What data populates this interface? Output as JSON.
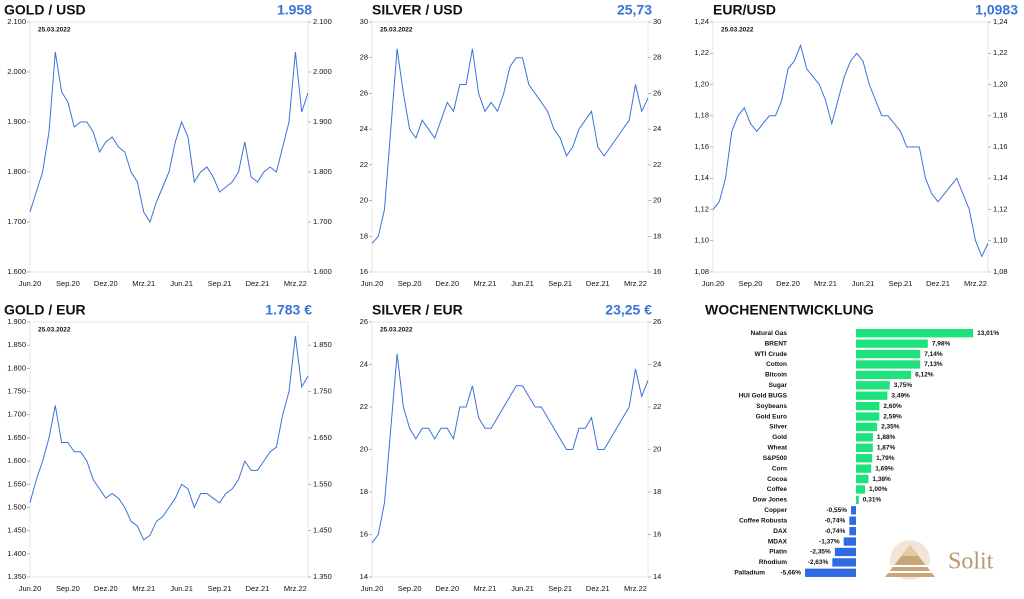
{
  "chart_data": [
    {
      "type": "line",
      "title": "GOLD / USD",
      "headline": "1.958",
      "annotation": "25.03.2022",
      "color": "#3a73d9",
      "categories": [
        "Jun.20",
        null,
        null,
        null,
        null,
        null,
        "Sep.20",
        null,
        null,
        null,
        null,
        null,
        "Dez.20",
        null,
        null,
        null,
        null,
        null,
        "Mrz.21",
        null,
        null,
        null,
        null,
        null,
        "Jun.21",
        null,
        null,
        null,
        null,
        null,
        "Sep.21",
        null,
        null,
        null,
        null,
        null,
        "Dez.21",
        null,
        null,
        null,
        null,
        null,
        "Mrz.22",
        null,
        null
      ],
      "values": [
        1720,
        1760,
        1800,
        1880,
        2040,
        1960,
        1940,
        1890,
        1900,
        1900,
        1880,
        1840,
        1860,
        1870,
        1850,
        1840,
        1800,
        1780,
        1720,
        1700,
        1740,
        1770,
        1800,
        1860,
        1900,
        1870,
        1780,
        1800,
        1810,
        1790,
        1760,
        1770,
        1780,
        1800,
        1860,
        1790,
        1780,
        1800,
        1810,
        1800,
        1850,
        1900,
        2040,
        1920,
        1958
      ],
      "ylim": [
        1600,
        2100
      ],
      "yticks": [
        {
          "value": 1600,
          "label": "1.600"
        },
        {
          "value": 1700,
          "label": "1.700"
        },
        {
          "value": 1800,
          "label": "1.800"
        },
        {
          "value": 1900,
          "label": "1.900"
        },
        {
          "value": 2000,
          "label": "2.000"
        },
        {
          "value": 2100,
          "label": "2.100"
        }
      ],
      "y2lim": [
        1600,
        2100
      ],
      "y2ticks": [
        {
          "value": 1600,
          "label": "1.600"
        },
        {
          "value": 1700,
          "label": "1.700"
        },
        {
          "value": 1800,
          "label": "1.800"
        },
        {
          "value": 1900,
          "label": "1.900"
        },
        {
          "value": 2000,
          "label": "2.000"
        },
        {
          "value": 2100,
          "label": "2.100"
        }
      ]
    },
    {
      "type": "line",
      "title": "SILVER / USD",
      "headline": "25,73",
      "annotation": "25.03.2022",
      "color": "#3a73d9",
      "categories": [
        "Jun.20",
        null,
        null,
        null,
        null,
        null,
        "Sep.20",
        null,
        null,
        null,
        null,
        null,
        "Dez.20",
        null,
        null,
        null,
        null,
        null,
        "Mrz.21",
        null,
        null,
        null,
        null,
        null,
        "Jun.21",
        null,
        null,
        null,
        null,
        null,
        "Sep.21",
        null,
        null,
        null,
        null,
        null,
        "Dez.21",
        null,
        null,
        null,
        null,
        null,
        "Mrz.22",
        null,
        null
      ],
      "values": [
        17.6,
        18,
        19.5,
        24,
        28.5,
        26,
        24,
        23.5,
        24.5,
        24,
        23.5,
        24.5,
        25.5,
        25,
        26.5,
        26.5,
        28.5,
        26,
        25,
        25.5,
        25,
        26,
        27.5,
        28,
        28,
        26.5,
        26,
        25.5,
        25,
        24,
        23.5,
        22.5,
        23,
        24,
        24.5,
        25,
        23,
        22.5,
        23,
        23.5,
        24,
        24.5,
        26.5,
        25,
        25.73
      ],
      "ylim": [
        16,
        30
      ],
      "yticks": [
        16,
        18,
        20,
        22,
        24,
        26,
        28,
        30
      ],
      "y2lim": [
        16,
        30
      ],
      "y2ticks": [
        16,
        18,
        20,
        22,
        24,
        26,
        28,
        30
      ]
    },
    {
      "type": "line",
      "title": "EUR/USD",
      "headline": "1,0983",
      "annotation": "25.03.2022",
      "color": "#3a73d9",
      "categories": [
        "Jun.20",
        null,
        null,
        null,
        null,
        null,
        "Sep.20",
        null,
        null,
        null,
        null,
        null,
        "Dez.20",
        null,
        null,
        null,
        null,
        null,
        "Mrz.21",
        null,
        null,
        null,
        null,
        null,
        "Jun.21",
        null,
        null,
        null,
        null,
        null,
        "Sep.21",
        null,
        null,
        null,
        null,
        null,
        "Dez.21",
        null,
        null,
        null,
        null,
        null,
        "Mrz.22",
        null,
        null
      ],
      "values": [
        1.12,
        1.125,
        1.14,
        1.17,
        1.18,
        1.185,
        1.175,
        1.17,
        1.175,
        1.18,
        1.18,
        1.19,
        1.21,
        1.215,
        1.225,
        1.21,
        1.205,
        1.2,
        1.19,
        1.175,
        1.19,
        1.205,
        1.215,
        1.22,
        1.215,
        1.2,
        1.19,
        1.18,
        1.18,
        1.175,
        1.17,
        1.16,
        1.16,
        1.16,
        1.14,
        1.13,
        1.125,
        1.13,
        1.135,
        1.14,
        1.13,
        1.12,
        1.1,
        1.09,
        1.0983
      ],
      "ylim": [
        1.08,
        1.24
      ],
      "yticks": [
        {
          "value": 1.08,
          "label": "1,08"
        },
        {
          "value": 1.1,
          "label": "1,10"
        },
        {
          "value": 1.12,
          "label": "1,12"
        },
        {
          "value": 1.14,
          "label": "1,14"
        },
        {
          "value": 1.16,
          "label": "1,16"
        },
        {
          "value": 1.18,
          "label": "1,18"
        },
        {
          "value": 1.2,
          "label": "1,20"
        },
        {
          "value": 1.22,
          "label": "1,22"
        },
        {
          "value": 1.24,
          "label": "1,24"
        }
      ],
      "y2lim": [
        1.08,
        1.24
      ],
      "y2ticks": [
        {
          "value": 1.08,
          "label": "1,08"
        },
        {
          "value": 1.1,
          "label": "1,10"
        },
        {
          "value": 1.12,
          "label": "1,12"
        },
        {
          "value": 1.14,
          "label": "1,14"
        },
        {
          "value": 1.16,
          "label": "1,16"
        },
        {
          "value": 1.18,
          "label": "1,18"
        },
        {
          "value": 1.2,
          "label": "1,20"
        },
        {
          "value": 1.22,
          "label": "1,22"
        },
        {
          "value": 1.24,
          "label": "1,24"
        }
      ]
    },
    {
      "type": "line",
      "title": "GOLD / EUR",
      "headline": "1.783 €",
      "annotation": "25.03.2022",
      "color": "#3a73d9",
      "categories": [
        "Jun.20",
        null,
        null,
        null,
        null,
        null,
        "Sep.20",
        null,
        null,
        null,
        null,
        null,
        "Dez.20",
        null,
        null,
        null,
        null,
        null,
        "Mrz.21",
        null,
        null,
        null,
        null,
        null,
        "Jun.21",
        null,
        null,
        null,
        null,
        null,
        "Sep.21",
        null,
        null,
        null,
        null,
        null,
        "Dez.21",
        null,
        null,
        null,
        null,
        null,
        "Mrz.22",
        null,
        null
      ],
      "values": [
        1510,
        1560,
        1600,
        1650,
        1720,
        1640,
        1640,
        1620,
        1620,
        1600,
        1560,
        1540,
        1520,
        1530,
        1520,
        1500,
        1470,
        1460,
        1430,
        1440,
        1470,
        1480,
        1500,
        1520,
        1550,
        1540,
        1500,
        1530,
        1530,
        1520,
        1510,
        1530,
        1540,
        1560,
        1600,
        1580,
        1580,
        1600,
        1620,
        1630,
        1700,
        1750,
        1870,
        1760,
        1783
      ],
      "ylim": [
        1350,
        1900
      ],
      "yticks": [
        {
          "value": 1350,
          "label": "1.350"
        },
        {
          "value": 1400,
          "label": "1.400"
        },
        {
          "value": 1450,
          "label": "1.450"
        },
        {
          "value": 1500,
          "label": "1.500"
        },
        {
          "value": 1550,
          "label": "1.550"
        },
        {
          "value": 1600,
          "label": "1.600"
        },
        {
          "value": 1650,
          "label": "1.650"
        },
        {
          "value": 1700,
          "label": "1.700"
        },
        {
          "value": 1750,
          "label": "1.750"
        },
        {
          "value": 1800,
          "label": "1.800"
        },
        {
          "value": 1850,
          "label": "1.850"
        },
        {
          "value": 1900,
          "label": "1.900"
        }
      ],
      "y2lim": [
        1350,
        1900
      ],
      "y2ticks": [
        {
          "value": 1350,
          "label": "1.350"
        },
        {
          "value": 1450,
          "label": "1.450"
        },
        {
          "value": 1550,
          "label": "1.550"
        },
        {
          "value": 1650,
          "label": "1.650"
        },
        {
          "value": 1750,
          "label": "1.750"
        },
        {
          "value": 1850,
          "label": "1.850"
        }
      ]
    },
    {
      "type": "line",
      "title": "SILVER / EUR",
      "headline": "23,25 €",
      "annotation": "25.03.2022",
      "color": "#3a73d9",
      "categories": [
        "Jun.20",
        null,
        null,
        null,
        null,
        null,
        "Sep.20",
        null,
        null,
        null,
        null,
        null,
        "Dez.20",
        null,
        null,
        null,
        null,
        null,
        "Mrz.21",
        null,
        null,
        null,
        null,
        null,
        "Jun.21",
        null,
        null,
        null,
        null,
        null,
        "Sep.21",
        null,
        null,
        null,
        null,
        null,
        "Dez.21",
        null,
        null,
        null,
        null,
        null,
        "Mrz.22",
        null,
        null
      ],
      "values": [
        15.6,
        16,
        17.5,
        21,
        24.5,
        22,
        21,
        20.5,
        21,
        21,
        20.5,
        21,
        21,
        20.5,
        22,
        22,
        23,
        21.5,
        21,
        21,
        21.5,
        22,
        22.5,
        23,
        23,
        22.5,
        22,
        22,
        21.5,
        21,
        20.5,
        20,
        20,
        21,
        21,
        21.5,
        20,
        20,
        20.5,
        21,
        21.5,
        22,
        23.8,
        22.5,
        23.25
      ],
      "ylim": [
        14,
        26
      ],
      "yticks": [
        14,
        16,
        18,
        20,
        22,
        24,
        26
      ],
      "y2lim": [
        14,
        26
      ],
      "y2ticks": [
        14,
        16,
        18,
        20,
        22,
        24,
        26
      ]
    },
    {
      "type": "hbar",
      "title": "WOCHENENTWICKLUNG",
      "color": "#1ee37c",
      "negative_color": "#2f6ae0",
      "categories": [
        "Natural Gas",
        "BRENT",
        "WTI Crude",
        "Cotton",
        "Bitcoin",
        "Sugar",
        "HUI Gold BUGS",
        "Soybeans",
        "Gold Euro",
        "Silver",
        "Gold",
        "Wheat",
        "S&P500",
        "Corn",
        "Cocoa",
        "Coffee",
        "Dow Jones",
        "Copper",
        "Coffee Robusta",
        "DAX",
        "MDAX",
        "Platin",
        "Rhodium",
        "Palladium"
      ],
      "values": [
        13.01,
        7.98,
        7.14,
        7.13,
        6.12,
        3.75,
        3.49,
        2.6,
        2.59,
        2.35,
        1.88,
        1.87,
        1.79,
        1.69,
        1.38,
        1.0,
        0.31,
        -0.55,
        -0.74,
        -0.74,
        -1.37,
        -2.35,
        -2.63,
        -5.66
      ],
      "value_labels": [
        "13,01%",
        "7,98%",
        "7,14%",
        "7,13%",
        "6,12%",
        "3,75%",
        "3,49%",
        "2,60%",
        "2,59%",
        "2,35%",
        "1,88%",
        "1,87%",
        "1,79%",
        "1,69%",
        "1,38%",
        "1,00%",
        "0,31%",
        "-0,55%",
        "-0,74%",
        "-0,74%",
        "-1,37%",
        "-2,35%",
        "-2,63%",
        "-5,66%"
      ]
    }
  ],
  "logo": "Solit"
}
